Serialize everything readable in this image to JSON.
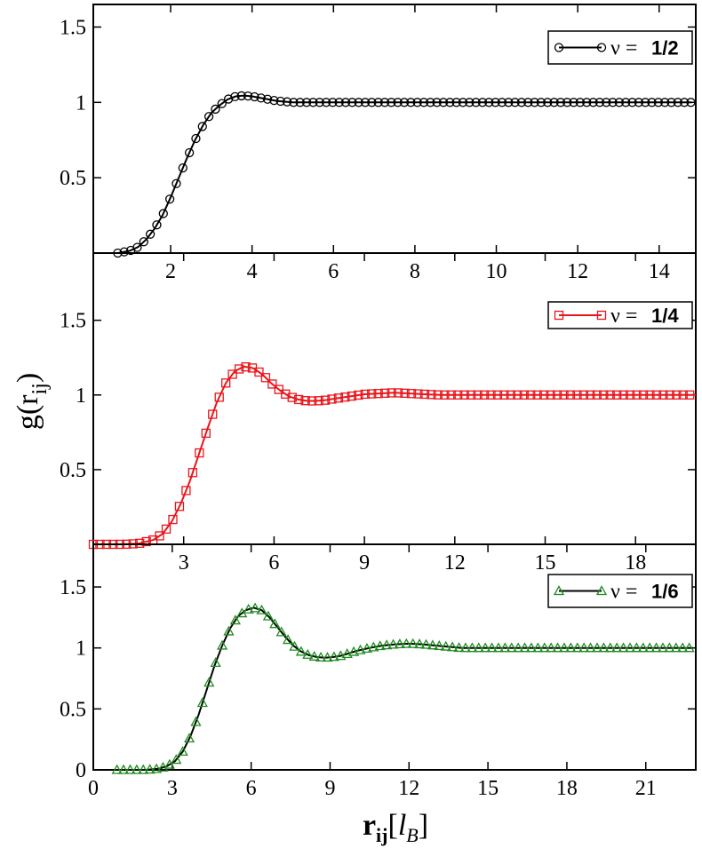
{
  "chart_data": [
    {
      "type": "line",
      "panel": "top",
      "series": [
        {
          "name": "ν = 1/2",
          "nu_label": "ν =",
          "fraction": "1/2",
          "color": "#000000",
          "marker": "circle",
          "x": [
            0.7,
            1.0,
            1.2,
            1.4,
            1.6,
            1.8,
            2.0,
            2.2,
            2.4,
            2.6,
            2.8,
            3.0,
            3.2,
            3.4,
            3.6,
            3.8,
            4.0,
            4.2,
            4.4,
            4.6,
            4.8,
            5.0,
            5.2,
            5.6,
            6.0,
            7.0,
            8.0,
            9.0,
            10.0,
            11.0,
            12.0,
            13.0,
            14.0,
            14.8
          ],
          "y": [
            0.0,
            0.015,
            0.04,
            0.09,
            0.16,
            0.25,
            0.37,
            0.5,
            0.63,
            0.75,
            0.85,
            0.93,
            0.98,
            1.02,
            1.04,
            1.045,
            1.04,
            1.03,
            1.02,
            1.01,
            1.005,
            1.0,
            1.0,
            1.0,
            1.0,
            1.0,
            1.0,
            1.0,
            1.0,
            1.0,
            1.0,
            1.0,
            1.0,
            1.0
          ]
        }
      ],
      "xlim": [
        0.1,
        14.9
      ],
      "ylim": [
        0,
        1.65
      ],
      "xticks": [
        2,
        4,
        6,
        8,
        10,
        12,
        14
      ],
      "yticks": [
        0.5,
        1,
        1.5
      ],
      "ytick_labels": [
        "0.5",
        "1",
        "1.5"
      ],
      "legend_position": "top-right"
    },
    {
      "type": "line",
      "panel": "middle",
      "series": [
        {
          "name": "ν = 1/4",
          "nu_label": "ν =",
          "fraction": "1/4",
          "color": "#e8161c",
          "marker": "square",
          "x": [
            0.0,
            1.0,
            1.5,
            2.0,
            2.3,
            2.6,
            2.9,
            3.2,
            3.5,
            3.8,
            4.1,
            4.4,
            4.7,
            5.0,
            5.3,
            5.6,
            5.9,
            6.2,
            6.5,
            6.8,
            7.1,
            7.4,
            7.7,
            8.0,
            8.5,
            9.0,
            9.5,
            10.0,
            10.5,
            11.0,
            11.5,
            12.0,
            13.0,
            14.0,
            16.0,
            18.0,
            20.0
          ],
          "y": [
            0.0,
            0.0,
            0.005,
            0.03,
            0.07,
            0.15,
            0.27,
            0.42,
            0.6,
            0.78,
            0.95,
            1.08,
            1.16,
            1.19,
            1.18,
            1.14,
            1.08,
            1.03,
            0.99,
            0.97,
            0.96,
            0.96,
            0.965,
            0.975,
            0.99,
            1.005,
            1.01,
            1.015,
            1.01,
            1.005,
            1.0,
            1.0,
            1.0,
            1.0,
            1.0,
            1.0,
            1.0
          ]
        }
      ],
      "xlim": [
        0.0,
        20.0
      ],
      "ylim": [
        0,
        1.95
      ],
      "xticks": [
        3,
        6,
        9,
        12,
        15,
        18
      ],
      "yticks": [
        0.5,
        1,
        1.5
      ],
      "ytick_labels": [
        "0.5",
        "1",
        "1.5"
      ],
      "legend_position": "top-right"
    },
    {
      "type": "line",
      "panel": "bottom",
      "series": [
        {
          "name": "ν = 1/6",
          "nu_label": "ν =",
          "fraction": "1/6",
          "color": "#1e8c1e",
          "marker": "triangle",
          "x": [
            0.9,
            1.5,
            2.0,
            2.5,
            2.8,
            3.1,
            3.4,
            3.7,
            4.0,
            4.3,
            4.6,
            4.9,
            5.2,
            5.5,
            5.8,
            6.1,
            6.4,
            6.7,
            7.0,
            7.3,
            7.6,
            7.9,
            8.2,
            8.5,
            8.8,
            9.1,
            9.4,
            9.7,
            10.0,
            10.5,
            11.0,
            11.5,
            12.0,
            12.5,
            13.0,
            13.5,
            14.0,
            15.0,
            16.0,
            18.0,
            20.0,
            22.0,
            22.8
          ],
          "y": [
            0.0,
            0.0,
            0.0,
            0.01,
            0.03,
            0.07,
            0.15,
            0.28,
            0.45,
            0.65,
            0.85,
            1.02,
            1.16,
            1.26,
            1.31,
            1.33,
            1.31,
            1.25,
            1.17,
            1.09,
            1.02,
            0.97,
            0.94,
            0.925,
            0.92,
            0.925,
            0.935,
            0.955,
            0.975,
            1.0,
            1.02,
            1.03,
            1.035,
            1.03,
            1.02,
            1.01,
            1.0,
            1.0,
            1.0,
            1.0,
            1.0,
            1.0,
            1.0
          ]
        }
      ],
      "xlim": [
        0.0,
        22.9
      ],
      "ylim": [
        0,
        1.85
      ],
      "xticks": [
        0,
        3,
        6,
        9,
        12,
        15,
        18,
        21
      ],
      "yticks": [
        0,
        0.5,
        1,
        1.5
      ],
      "ytick_labels": [
        "0",
        "0.5",
        "1",
        "1.5"
      ],
      "legend_position": "top-right"
    }
  ],
  "ylabel": {
    "main": "g(r",
    "sub": "ij",
    "close": ")"
  },
  "xlabel": {
    "main": "r",
    "sub": "ij",
    "bracket_open": "[",
    "unit": "l",
    "unit_sub": "B",
    "bracket_close": "]"
  }
}
